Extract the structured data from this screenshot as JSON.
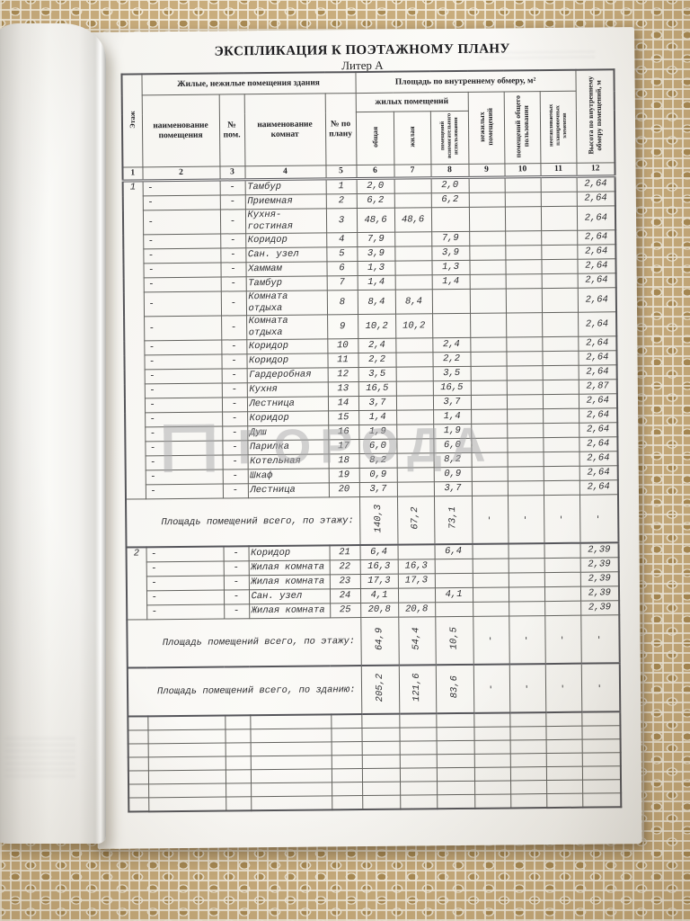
{
  "photo": {
    "watermark_text": "ГОРОДА"
  },
  "document": {
    "title": "ЭКСПЛИКАЦИЯ К ПОЭТАЖНОМУ ПЛАНУ",
    "subtitle": "Литер А",
    "table": {
      "group_headers": {
        "premises": "Жилые, нежилые помещения здания",
        "area": "Площадь по внутреннему обмеру, м²"
      },
      "columns": {
        "floor": "Этаж",
        "room_name": "наименование помещения",
        "room_no": "№ пом.",
        "rooms": "наименование комнат",
        "plan_no": "№ по плану",
        "living_group": "жилых помещений",
        "total": "общая",
        "living": "жилая",
        "aux": "помещений вспомогательного использования",
        "nonliving": "нежилых помещений",
        "common": "помещений общего пользования",
        "unheated": "неотапливаемых планировочных элементов",
        "height": "Высота по внутреннему обмеру помещений, м"
      },
      "column_numbers": [
        "1",
        "2",
        "3",
        "4",
        "5",
        "6",
        "7",
        "8",
        "9",
        "10",
        "11",
        "12"
      ],
      "dash": "-",
      "floors": [
        {
          "floor": "1",
          "rows": [
            {
              "room": "Тамбур",
              "plan": "1",
              "total": "2,0",
              "living": "",
              "aux": "2,0",
              "height": "2,64"
            },
            {
              "room": "Приемная",
              "plan": "2",
              "total": "6,2",
              "living": "",
              "aux": "6,2",
              "height": "2,64"
            },
            {
              "room": "Кухня-гостиная",
              "plan": "3",
              "total": "48,6",
              "living": "48,6",
              "aux": "",
              "height": "2,64"
            },
            {
              "room": "Коридор",
              "plan": "4",
              "total": "7,9",
              "living": "",
              "aux": "7,9",
              "height": "2,64"
            },
            {
              "room": "Сан. узел",
              "plan": "5",
              "total": "3,9",
              "living": "",
              "aux": "3,9",
              "height": "2,64"
            },
            {
              "room": "Хаммам",
              "plan": "6",
              "total": "1,3",
              "living": "",
              "aux": "1,3",
              "height": "2,64"
            },
            {
              "room": "Тамбур",
              "plan": "7",
              "total": "1,4",
              "living": "",
              "aux": "1,4",
              "height": "2,64"
            },
            {
              "room": "Комната отдыха",
              "plan": "8",
              "total": "8,4",
              "living": "8,4",
              "aux": "",
              "height": "2,64"
            },
            {
              "room": "Комната отдыха",
              "plan": "9",
              "total": "10,2",
              "living": "10,2",
              "aux": "",
              "height": "2,64"
            },
            {
              "room": "Коридор",
              "plan": "10",
              "total": "2,4",
              "living": "",
              "aux": "2,4",
              "height": "2,64"
            },
            {
              "room": "Коридор",
              "plan": "11",
              "total": "2,2",
              "living": "",
              "aux": "2,2",
              "height": "2,64"
            },
            {
              "room": "Гардеробная",
              "plan": "12",
              "total": "3,5",
              "living": "",
              "aux": "3,5",
              "height": "2,64"
            },
            {
              "room": "Кухня",
              "plan": "13",
              "total": "16,5",
              "living": "",
              "aux": "16,5",
              "height": "2,87"
            },
            {
              "room": "Лестница",
              "plan": "14",
              "total": "3,7",
              "living": "",
              "aux": "3,7",
              "height": "2,64"
            },
            {
              "room": "Коридор",
              "plan": "15",
              "total": "1,4",
              "living": "",
              "aux": "1,4",
              "height": "2,64"
            },
            {
              "room": "Душ",
              "plan": "16",
              "total": "1,9",
              "living": "",
              "aux": "1,9",
              "height": "2,64"
            },
            {
              "room": "Парилка",
              "plan": "17",
              "total": "6,0",
              "living": "",
              "aux": "6,0",
              "height": "2,64"
            },
            {
              "room": "Котельная",
              "plan": "18",
              "total": "8,2",
              "living": "",
              "aux": "8,2",
              "height": "2,64"
            },
            {
              "room": "Шкаф",
              "plan": "19",
              "total": "0,9",
              "living": "",
              "aux": "0,9",
              "height": "2,64"
            },
            {
              "room": "Лестница",
              "plan": "20",
              "total": "3,7",
              "living": "",
              "aux": "3,7",
              "height": "2,64"
            }
          ],
          "total_label": "Площадь помещений всего, по этажу:",
          "totals": {
            "total": "140,3",
            "living": "67,2",
            "aux": "73,1",
            "nonliving": "-",
            "common": "-",
            "unheated": "-",
            "height": "-"
          }
        },
        {
          "floor": "2",
          "rows": [
            {
              "room": "Коридор",
              "plan": "21",
              "total": "6,4",
              "living": "",
              "aux": "6,4",
              "height": "2,39"
            },
            {
              "room": "Жилая комната",
              "plan": "22",
              "total": "16,3",
              "living": "16,3",
              "aux": "",
              "height": "2,39"
            },
            {
              "room": "Жилая комната",
              "plan": "23",
              "total": "17,3",
              "living": "17,3",
              "aux": "",
              "height": "2,39"
            },
            {
              "room": "Сан. узел",
              "plan": "24",
              "total": "4,1",
              "living": "",
              "aux": "4,1",
              "height": "2,39"
            },
            {
              "room": "Жилая комната",
              "plan": "25",
              "total": "20,8",
              "living": "20,8",
              "aux": "",
              "height": "2,39"
            }
          ],
          "total_label": "Площадь помещений всего, по этажу:",
          "totals": {
            "total": "64,9",
            "living": "54,4",
            "aux": "10,5",
            "nonliving": "-",
            "common": "-",
            "unheated": "-",
            "height": "-"
          }
        }
      ],
      "building_total_label": "Площадь помещений всего, по зданию:",
      "building_totals": {
        "total": "205,2",
        "living": "121,6",
        "aux": "83,6",
        "nonliving": "-",
        "common": "-",
        "unheated": "-",
        "height": "-"
      },
      "empty_row_count": 7
    }
  }
}
